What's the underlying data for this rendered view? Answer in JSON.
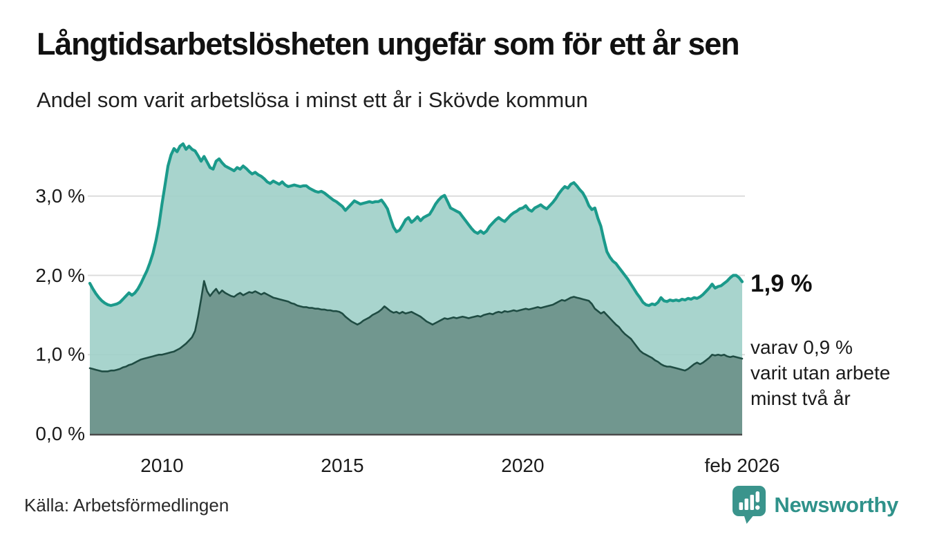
{
  "header": {
    "title": "Långtidsarbetslösheten ungefär som för ett år sen",
    "subtitle": "Andel som varit arbetslösa i minst ett år i Skövde kommun"
  },
  "chart_data": {
    "type": "area",
    "title": "Långtidsarbetslösheten ungefär som för ett år sen",
    "subtitle": "Andel som varit arbetslösa i minst ett år i Skövde kommun",
    "unit": "%",
    "x_start": 2008.0,
    "x_step": 0.0833333,
    "xlim": [
      2008.0,
      2026.0833
    ],
    "ylim": [
      0,
      3.8
    ],
    "grid": "horizontal",
    "legend_position": "none",
    "y_ticks": [
      {
        "label": "3,0 %",
        "value": 3.0
      },
      {
        "label": "2,0 %",
        "value": 2.0
      },
      {
        "label": "1,0 %",
        "value": 1.0
      },
      {
        "label": "0,0 %",
        "value": 0.0
      }
    ],
    "x_ticks": [
      {
        "label": "2010",
        "year": 2010
      },
      {
        "label": "2015",
        "year": 2015
      },
      {
        "label": "2020",
        "year": 2020
      },
      {
        "label": "feb 2026",
        "year": 2026.0833
      }
    ],
    "series": [
      {
        "name": "Andel som varit arbetslösa i minst ett år",
        "line_color": "#1b9a8b",
        "fill_color": "#9ecfc8",
        "last_value": 1.9,
        "values": [
          1.9,
          1.83,
          1.77,
          1.72,
          1.68,
          1.65,
          1.63,
          1.62,
          1.63,
          1.64,
          1.66,
          1.7,
          1.74,
          1.78,
          1.75,
          1.78,
          1.83,
          1.9,
          1.98,
          2.06,
          2.16,
          2.28,
          2.44,
          2.64,
          2.9,
          3.14,
          3.38,
          3.52,
          3.6,
          3.56,
          3.63,
          3.66,
          3.59,
          3.63,
          3.59,
          3.57,
          3.51,
          3.44,
          3.5,
          3.43,
          3.36,
          3.34,
          3.44,
          3.47,
          3.42,
          3.38,
          3.36,
          3.34,
          3.32,
          3.36,
          3.34,
          3.38,
          3.35,
          3.31,
          3.28,
          3.3,
          3.27,
          3.25,
          3.22,
          3.18,
          3.16,
          3.19,
          3.17,
          3.15,
          3.18,
          3.14,
          3.12,
          3.13,
          3.14,
          3.13,
          3.12,
          3.13,
          3.13,
          3.1,
          3.08,
          3.06,
          3.05,
          3.06,
          3.04,
          3.01,
          2.98,
          2.95,
          2.93,
          2.9,
          2.87,
          2.82,
          2.86,
          2.9,
          2.94,
          2.92,
          2.9,
          2.91,
          2.92,
          2.93,
          2.92,
          2.93,
          2.93,
          2.95,
          2.9,
          2.84,
          2.72,
          2.61,
          2.55,
          2.57,
          2.63,
          2.7,
          2.73,
          2.67,
          2.7,
          2.74,
          2.69,
          2.73,
          2.75,
          2.77,
          2.83,
          2.9,
          2.95,
          2.99,
          3.01,
          2.93,
          2.85,
          2.83,
          2.81,
          2.79,
          2.74,
          2.69,
          2.64,
          2.59,
          2.55,
          2.53,
          2.56,
          2.53,
          2.56,
          2.62,
          2.66,
          2.7,
          2.73,
          2.7,
          2.68,
          2.72,
          2.76,
          2.79,
          2.81,
          2.84,
          2.85,
          2.88,
          2.83,
          2.81,
          2.85,
          2.87,
          2.89,
          2.86,
          2.84,
          2.88,
          2.92,
          2.97,
          3.03,
          3.08,
          3.12,
          3.1,
          3.15,
          3.17,
          3.13,
          3.08,
          3.04,
          2.97,
          2.88,
          2.83,
          2.85,
          2.72,
          2.62,
          2.45,
          2.3,
          2.23,
          2.18,
          2.15,
          2.1,
          2.05,
          2.0,
          1.95,
          1.89,
          1.83,
          1.77,
          1.72,
          1.66,
          1.63,
          1.62,
          1.64,
          1.63,
          1.66,
          1.72,
          1.68,
          1.67,
          1.69,
          1.68,
          1.69,
          1.68,
          1.7,
          1.69,
          1.71,
          1.7,
          1.72,
          1.71,
          1.73,
          1.76,
          1.8,
          1.84,
          1.89,
          1.84,
          1.86,
          1.87,
          1.9,
          1.93,
          1.97,
          2.0,
          2.0,
          1.97,
          1.92
        ]
      },
      {
        "name": "varav arbetslösa minst två år",
        "line_color": "#1f4c43",
        "fill_color": "#6e938b",
        "last_value": 0.9,
        "values": [
          0.83,
          0.82,
          0.81,
          0.8,
          0.79,
          0.79,
          0.79,
          0.8,
          0.8,
          0.81,
          0.82,
          0.84,
          0.85,
          0.87,
          0.88,
          0.9,
          0.92,
          0.94,
          0.95,
          0.96,
          0.97,
          0.98,
          0.99,
          1.0,
          1.0,
          1.01,
          1.02,
          1.03,
          1.04,
          1.06,
          1.08,
          1.11,
          1.14,
          1.18,
          1.22,
          1.3,
          1.48,
          1.7,
          1.93,
          1.8,
          1.74,
          1.79,
          1.83,
          1.77,
          1.81,
          1.78,
          1.76,
          1.74,
          1.73,
          1.76,
          1.78,
          1.75,
          1.77,
          1.79,
          1.78,
          1.8,
          1.78,
          1.76,
          1.78,
          1.76,
          1.74,
          1.72,
          1.71,
          1.7,
          1.69,
          1.68,
          1.67,
          1.65,
          1.64,
          1.62,
          1.61,
          1.6,
          1.6,
          1.59,
          1.59,
          1.58,
          1.58,
          1.57,
          1.57,
          1.56,
          1.56,
          1.55,
          1.55,
          1.54,
          1.52,
          1.48,
          1.45,
          1.42,
          1.4,
          1.38,
          1.4,
          1.43,
          1.45,
          1.47,
          1.5,
          1.52,
          1.54,
          1.57,
          1.61,
          1.58,
          1.55,
          1.53,
          1.54,
          1.52,
          1.54,
          1.52,
          1.53,
          1.54,
          1.52,
          1.5,
          1.48,
          1.45,
          1.42,
          1.4,
          1.38,
          1.4,
          1.42,
          1.44,
          1.46,
          1.45,
          1.46,
          1.47,
          1.46,
          1.47,
          1.48,
          1.47,
          1.46,
          1.47,
          1.48,
          1.49,
          1.48,
          1.5,
          1.51,
          1.52,
          1.51,
          1.53,
          1.54,
          1.53,
          1.55,
          1.54,
          1.55,
          1.56,
          1.55,
          1.56,
          1.57,
          1.58,
          1.57,
          1.58,
          1.59,
          1.6,
          1.59,
          1.6,
          1.61,
          1.62,
          1.63,
          1.65,
          1.67,
          1.69,
          1.68,
          1.7,
          1.72,
          1.73,
          1.72,
          1.71,
          1.7,
          1.69,
          1.68,
          1.64,
          1.58,
          1.55,
          1.52,
          1.54,
          1.5,
          1.46,
          1.42,
          1.38,
          1.35,
          1.3,
          1.26,
          1.23,
          1.2,
          1.15,
          1.1,
          1.05,
          1.02,
          1.0,
          0.98,
          0.96,
          0.93,
          0.91,
          0.88,
          0.86,
          0.85,
          0.85,
          0.84,
          0.83,
          0.82,
          0.81,
          0.8,
          0.82,
          0.85,
          0.88,
          0.9,
          0.88,
          0.9,
          0.93,
          0.96,
          1.0,
          0.99,
          1.0,
          0.99,
          1.0,
          0.98,
          0.97,
          0.98,
          0.97,
          0.96,
          0.95
        ]
      }
    ],
    "annotations": {
      "primary": "1,9 %",
      "secondary": "varav 0,9 %\nvarit utan arbete\nminst två år"
    }
  },
  "footer": {
    "source": "Källa: Arbetsförmedlingen",
    "brand": "Newsworthy"
  },
  "colors": {
    "line_1yr": "#1b9a8b",
    "fill_1yr": "#9ecfc8",
    "line_2yr": "#1f4c43",
    "fill_2yr": "#6e938b",
    "gridline": "#dcdcdc",
    "baseline": "#4a4a4a",
    "brand_teal": "#2f928a"
  }
}
